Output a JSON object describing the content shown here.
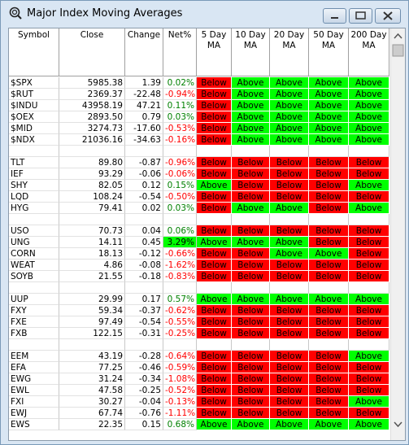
{
  "window": {
    "title": "Major Index Moving Averages"
  },
  "table": {
    "headers": [
      [
        "Symbol"
      ],
      [
        "Close"
      ],
      [
        "Change"
      ],
      [
        "Net%"
      ],
      [
        "5 Day",
        "MA"
      ],
      [
        "10 Day",
        "MA"
      ],
      [
        "20 Day",
        "MA"
      ],
      [
        "50 Day",
        "MA"
      ],
      [
        "200 Day",
        "MA"
      ]
    ],
    "signal_colors": {
      "Above": "#00ff00",
      "Below": "#ff0000"
    },
    "positive_color": "#008000",
    "negative_color": "#ff0000",
    "highlight_color": "#00ff00",
    "groups": [
      [
        [
          "$SPX",
          "5985.38",
          "1.39",
          "0.02%",
          "Below",
          "Above",
          "Above",
          "Above",
          "Above"
        ],
        [
          "$RUT",
          "2369.37",
          "-22.48",
          "-0.94%",
          "Below",
          "Above",
          "Above",
          "Above",
          "Above"
        ],
        [
          "$INDU",
          "43958.19",
          "47.21",
          "0.11%",
          "Below",
          "Above",
          "Above",
          "Above",
          "Above"
        ],
        [
          "$OEX",
          "2893.50",
          "0.79",
          "0.03%",
          "Below",
          "Above",
          "Above",
          "Above",
          "Above"
        ],
        [
          "$MID",
          "3274.73",
          "-17.60",
          "-0.53%",
          "Below",
          "Above",
          "Above",
          "Above",
          "Above"
        ],
        [
          "$NDX",
          "21036.16",
          "-34.63",
          "-0.16%",
          "Below",
          "Above",
          "Above",
          "Above",
          "Above"
        ]
      ],
      [
        [
          "TLT",
          "89.80",
          "-0.87",
          "-0.96%",
          "Below",
          "Below",
          "Below",
          "Below",
          "Below"
        ],
        [
          "IEF",
          "93.29",
          "-0.06",
          "-0.06%",
          "Below",
          "Below",
          "Below",
          "Below",
          "Below"
        ],
        [
          "SHY",
          "82.05",
          "0.12",
          "0.15%",
          "Above",
          "Below",
          "Below",
          "Below",
          "Above"
        ],
        [
          "LQD",
          "108.24",
          "-0.54",
          "-0.50%",
          "Below",
          "Below",
          "Below",
          "Below",
          "Below"
        ],
        [
          "HYG",
          "79.41",
          "0.02",
          "0.03%",
          "Below",
          "Above",
          "Above",
          "Below",
          "Above"
        ]
      ],
      [
        [
          "USO",
          "70.73",
          "0.04",
          "0.06%",
          "Below",
          "Below",
          "Below",
          "Below",
          "Below"
        ],
        [
          "UNG",
          "14.11",
          "0.45",
          "3.29%",
          "Above",
          "Above",
          "Above",
          "Below",
          "Below"
        ],
        [
          "CORN",
          "18.13",
          "-0.12",
          "-0.66%",
          "Below",
          "Below",
          "Above",
          "Above",
          "Below"
        ],
        [
          "WEAT",
          "4.86",
          "-0.08",
          "-1.62%",
          "Below",
          "Below",
          "Below",
          "Below",
          "Below"
        ],
        [
          "SOYB",
          "21.55",
          "-0.18",
          "-0.83%",
          "Below",
          "Below",
          "Below",
          "Below",
          "Below"
        ]
      ],
      [
        [
          "UUP",
          "29.99",
          "0.17",
          "0.57%",
          "Above",
          "Above",
          "Above",
          "Above",
          "Above"
        ],
        [
          "FXY",
          "59.34",
          "-0.37",
          "-0.62%",
          "Below",
          "Below",
          "Below",
          "Below",
          "Below"
        ],
        [
          "FXE",
          "97.49",
          "-0.54",
          "-0.55%",
          "Below",
          "Below",
          "Below",
          "Below",
          "Below"
        ],
        [
          "FXB",
          "122.15",
          "-0.31",
          "-0.25%",
          "Below",
          "Below",
          "Below",
          "Below",
          "Below"
        ]
      ],
      [
        [
          "EEM",
          "43.19",
          "-0.28",
          "-0.64%",
          "Below",
          "Below",
          "Below",
          "Below",
          "Above"
        ],
        [
          "EFA",
          "77.25",
          "-0.46",
          "-0.59%",
          "Below",
          "Below",
          "Below",
          "Below",
          "Below"
        ],
        [
          "EWG",
          "31.24",
          "-0.34",
          "-1.08%",
          "Below",
          "Below",
          "Below",
          "Below",
          "Below"
        ],
        [
          "EWL",
          "47.58",
          "-0.25",
          "-0.52%",
          "Below",
          "Below",
          "Below",
          "Below",
          "Below"
        ],
        [
          "FXI",
          "30.27",
          "-0.04",
          "-0.13%",
          "Below",
          "Below",
          "Below",
          "Below",
          "Above"
        ],
        [
          "EWJ",
          "67.74",
          "-0.76",
          "-1.11%",
          "Below",
          "Below",
          "Below",
          "Below",
          "Below"
        ],
        [
          "EWS",
          "22.35",
          "0.15",
          "0.68%",
          "Above",
          "Above",
          "Above",
          "Above",
          "Above"
        ]
      ]
    ],
    "highlight_cells": [
      "table.groups.2.1.3"
    ]
  }
}
